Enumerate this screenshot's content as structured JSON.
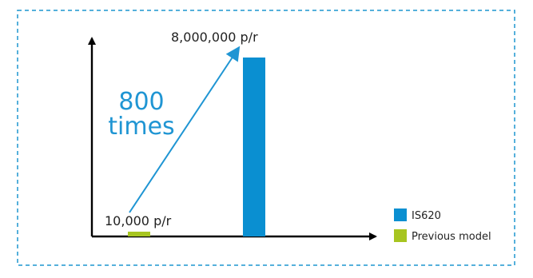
{
  "chart_data": {
    "type": "bar",
    "categories": [
      "Previous model",
      "IS620"
    ],
    "values": [
      10000,
      8000000
    ],
    "title": "",
    "xlabel": "",
    "ylabel": "",
    "ylim": [
      0,
      8500000
    ],
    "grid": false,
    "legend_position": "bottom-right",
    "series": [
      {
        "name": "Previous model",
        "color": "#a7c520",
        "value": 10000,
        "label": "10,000 p/r"
      },
      {
        "name": "IS620",
        "color": "#0a8fd1",
        "value": 8000000,
        "label": "8,000,000 p/r"
      }
    ],
    "annotation": {
      "line1": "800",
      "line2": "times",
      "color": "#1f95d3"
    },
    "legend": [
      {
        "name": "IS620",
        "color": "#0a8fd1"
      },
      {
        "name": "Previous model",
        "color": "#a7c520"
      }
    ]
  }
}
